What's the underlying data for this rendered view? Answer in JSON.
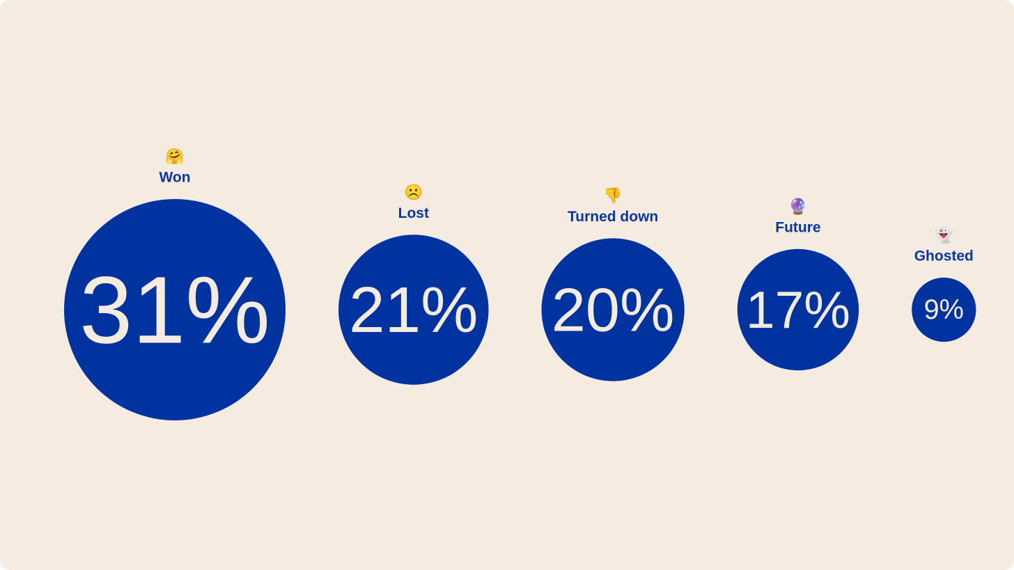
{
  "chart_data": {
    "type": "bubble",
    "categories": [
      "Won",
      "Lost",
      "Turned down",
      "Future",
      "Ghosted"
    ],
    "icons": [
      "🤗",
      "☹️",
      "👎",
      "🔮",
      "👻"
    ],
    "values": [
      31,
      21,
      20,
      17,
      9
    ],
    "value_labels": [
      "31%",
      "21%",
      "20%",
      "17%",
      "9%"
    ],
    "color": "#0033a0"
  }
}
